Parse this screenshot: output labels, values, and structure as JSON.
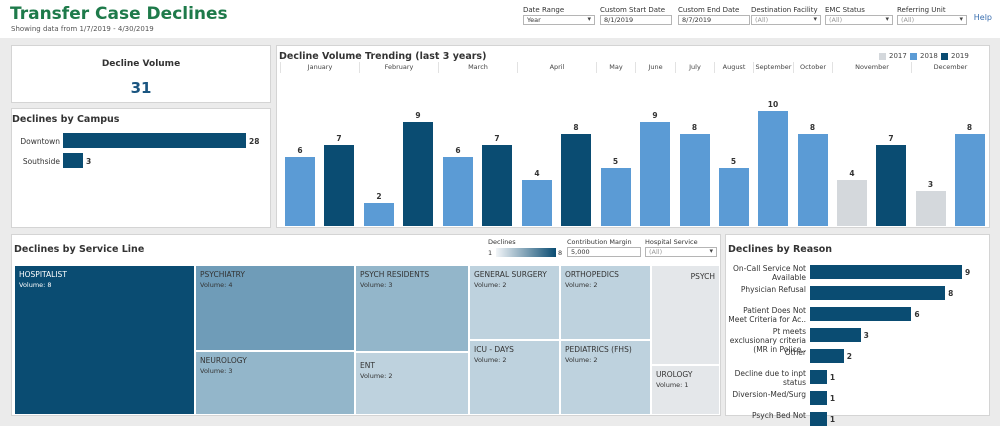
{
  "header": {
    "title": "Transfer Case Declines",
    "subtitle": "Showing data from 1/7/2019 - 4/30/2019",
    "help_label": "Help"
  },
  "filters": [
    {
      "label": "Date Range",
      "value": "Year",
      "dropdown": true
    },
    {
      "label": "Custom Start Date",
      "value": "8/1/2019",
      "dropdown": false
    },
    {
      "label": "Custom End Date",
      "value": "8/7/2019",
      "dropdown": false
    },
    {
      "label": "Destination Facility",
      "value": "(All)",
      "dropdown": true
    },
    {
      "label": "EMC Status",
      "value": "(All)",
      "dropdown": true
    },
    {
      "label": "Referring Unit",
      "value": "(All)",
      "dropdown": true
    }
  ],
  "kpi": {
    "title": "Decline Volume",
    "value": "31"
  },
  "campus": {
    "title": "Declines by Campus",
    "items": [
      {
        "label": "Downtown",
        "value": 28
      },
      {
        "label": "Southside",
        "value": 3
      }
    ]
  },
  "trend": {
    "title": "Decline Volume Trending (last 3 years)",
    "legend": [
      {
        "label": "2017",
        "color": "#d4d8dc"
      },
      {
        "label": "2018",
        "color": "#5b9bd5"
      },
      {
        "label": "2019",
        "color": "#0a4c72"
      }
    ]
  },
  "chart_data": {
    "type": "bar",
    "title": "Decline Volume Trending (last 3 years)",
    "categories": [
      "January",
      "February",
      "March",
      "April",
      "May",
      "June",
      "July",
      "August",
      "September",
      "October",
      "November",
      "December"
    ],
    "series": [
      {
        "name": "2017",
        "values": [
          null,
          null,
          null,
          null,
          null,
          null,
          null,
          null,
          null,
          null,
          4,
          3
        ]
      },
      {
        "name": "2018",
        "values": [
          6,
          2,
          6,
          4,
          5,
          9,
          8,
          5,
          10,
          8,
          null,
          8
        ]
      },
      {
        "name": "2019",
        "values": [
          7,
          9,
          7,
          8,
          null,
          null,
          null,
          null,
          null,
          null,
          7,
          null
        ]
      }
    ],
    "ylim": [
      0,
      11
    ]
  },
  "service": {
    "title": "Declines by Service Line",
    "declines_label": "Declines",
    "declines_min": "1",
    "declines_max": "8",
    "margin_label": "Contribution Margin",
    "margin_value": "5,000",
    "hospital_label": "Hospital Service",
    "hospital_value": "(All)",
    "cells": [
      {
        "name": "HOSPITALIST",
        "vol": "Volume: 8"
      },
      {
        "name": "PSYCHIATRY",
        "vol": "Volume: 4"
      },
      {
        "name": "NEUROLOGY",
        "vol": "Volume: 3"
      },
      {
        "name": "PSYCH RESIDENTS",
        "vol": "Volume: 3"
      },
      {
        "name": "ENT",
        "vol": "Volume: 2"
      },
      {
        "name": "GENERAL SURGERY",
        "vol": "Volume: 2"
      },
      {
        "name": "ICU - DAYS",
        "vol": "Volume: 2"
      },
      {
        "name": "ORTHOPEDICS",
        "vol": "Volume: 2"
      },
      {
        "name": "PEDIATRICS (FHS)",
        "vol": "Volume: 2"
      },
      {
        "name": "PSYCH",
        "vol": ""
      },
      {
        "name": "UROLOGY",
        "vol": "Volume: 1"
      }
    ]
  },
  "reasons": {
    "title": "Declines by Reason",
    "items": [
      {
        "label": "On-Call Service Not Available",
        "value": 9
      },
      {
        "label": "Physician Refusal",
        "value": 8
      },
      {
        "label": "Patient Does Not Meet Criteria for Ac..",
        "value": 6
      },
      {
        "label": "Pt meets exclusionary criteria (MR in Police..",
        "value": 3
      },
      {
        "label": "Other",
        "value": 2
      },
      {
        "label": "Decline due to inpt status",
        "value": 1
      },
      {
        "label": "Diversion-Med/Surg",
        "value": 1
      },
      {
        "label": "Psych Bed Not",
        "value": 1
      }
    ]
  }
}
